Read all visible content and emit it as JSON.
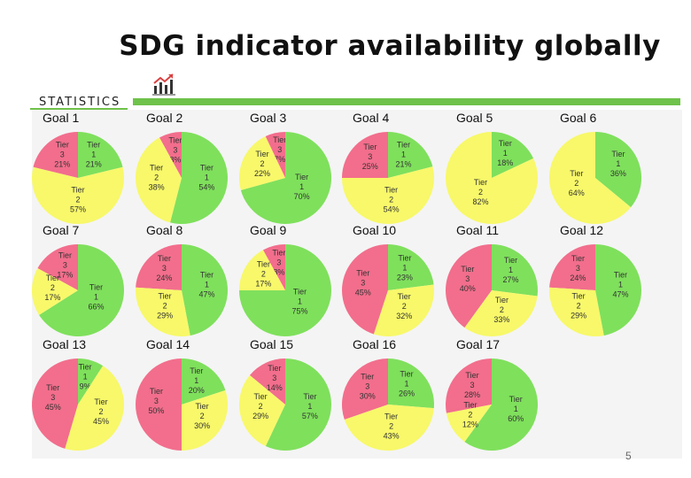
{
  "title": "SDG indicator availability globally",
  "statistics_label": "STATISTICS",
  "page_number": "5",
  "colors": {
    "tier1": "#7fe05c",
    "tier2": "#f8f86a",
    "tier3": "#f26e8c",
    "accent": "#6fc24a",
    "background_panel": "#f4f4f4"
  },
  "icons": [
    "growth-chart-icon"
  ],
  "chart_data": [
    {
      "type": "pie",
      "title": "Goal 1",
      "slices": [
        {
          "label": "Tier 1",
          "value": 21
        },
        {
          "label": "Tier 2",
          "value": 57
        },
        {
          "label": "Tier 3",
          "value": 21
        }
      ]
    },
    {
      "type": "pie",
      "title": "Goal 2",
      "slices": [
        {
          "label": "Tier 1",
          "value": 54
        },
        {
          "label": "Tier 2",
          "value": 38
        },
        {
          "label": "Tier 3",
          "value": 8
        }
      ]
    },
    {
      "type": "pie",
      "title": "Goal 3",
      "slices": [
        {
          "label": "Tier 1",
          "value": 70
        },
        {
          "label": "Tier 2",
          "value": 22
        },
        {
          "label": "Tier 3",
          "value": 7
        }
      ]
    },
    {
      "type": "pie",
      "title": "Goal 4",
      "slices": [
        {
          "label": "Tier 1",
          "value": 21
        },
        {
          "label": "Tier 2",
          "value": 54
        },
        {
          "label": "Tier 3",
          "value": 25
        }
      ]
    },
    {
      "type": "pie",
      "title": "Goal 5",
      "slices": [
        {
          "label": "Tier 1",
          "value": 18
        },
        {
          "label": "Tier 2",
          "value": 82
        },
        {
          "label": "Tier 3",
          "value": 0
        }
      ]
    },
    {
      "type": "pie",
      "title": "Goal 6",
      "slices": [
        {
          "label": "Tier 1",
          "value": 36
        },
        {
          "label": "Tier 2",
          "value": 64
        },
        {
          "label": "Tier 3",
          "value": 0
        }
      ]
    },
    {
      "type": "pie",
      "title": "Goal 7",
      "slices": [
        {
          "label": "Tier 1",
          "value": 66
        },
        {
          "label": "Tier 2",
          "value": 17
        },
        {
          "label": "Tier 3",
          "value": 17
        }
      ]
    },
    {
      "type": "pie",
      "title": "Goal 8",
      "slices": [
        {
          "label": "Tier 1",
          "value": 47
        },
        {
          "label": "Tier 2",
          "value": 29
        },
        {
          "label": "Tier 3",
          "value": 24
        }
      ]
    },
    {
      "type": "pie",
      "title": "Goal 9",
      "slices": [
        {
          "label": "Tier 1",
          "value": 75
        },
        {
          "label": "Tier 2",
          "value": 17
        },
        {
          "label": "Tier 3",
          "value": 8
        }
      ]
    },
    {
      "type": "pie",
      "title": "Goal 10",
      "slices": [
        {
          "label": "Tier 1",
          "value": 23
        },
        {
          "label": "Tier 2",
          "value": 32
        },
        {
          "label": "Tier 3",
          "value": 45
        }
      ]
    },
    {
      "type": "pie",
      "title": "Goal 11",
      "slices": [
        {
          "label": "Tier 1",
          "value": 27
        },
        {
          "label": "Tier 2",
          "value": 33
        },
        {
          "label": "Tier 3",
          "value": 40
        }
      ]
    },
    {
      "type": "pie",
      "title": "Goal 12",
      "slices": [
        {
          "label": "Tier 1",
          "value": 47
        },
        {
          "label": "Tier 2",
          "value": 29
        },
        {
          "label": "Tier 3",
          "value": 24
        }
      ]
    },
    {
      "type": "pie",
      "title": "Goal 13",
      "slices": [
        {
          "label": "Tier 1",
          "value": 9
        },
        {
          "label": "Tier 2",
          "value": 45
        },
        {
          "label": "Tier 3",
          "value": 45
        }
      ]
    },
    {
      "type": "pie",
      "title": "Goal 14",
      "slices": [
        {
          "label": "Tier 1",
          "value": 20
        },
        {
          "label": "Tier 2",
          "value": 30
        },
        {
          "label": "Tier 3",
          "value": 50
        }
      ]
    },
    {
      "type": "pie",
      "title": "Goal 15",
      "slices": [
        {
          "label": "Tier 1",
          "value": 57
        },
        {
          "label": "Tier 2",
          "value": 29
        },
        {
          "label": "Tier 3",
          "value": 14
        }
      ]
    },
    {
      "type": "pie",
      "title": "Goal 16",
      "slices": [
        {
          "label": "Tier 1",
          "value": 26
        },
        {
          "label": "Tier 2",
          "value": 43
        },
        {
          "label": "Tier 3",
          "value": 30
        }
      ]
    },
    {
      "type": "pie",
      "title": "Goal 17",
      "slices": [
        {
          "label": "Tier 1",
          "value": 60
        },
        {
          "label": "Tier 2",
          "value": 12
        },
        {
          "label": "Tier 3",
          "value": 28
        }
      ]
    }
  ]
}
